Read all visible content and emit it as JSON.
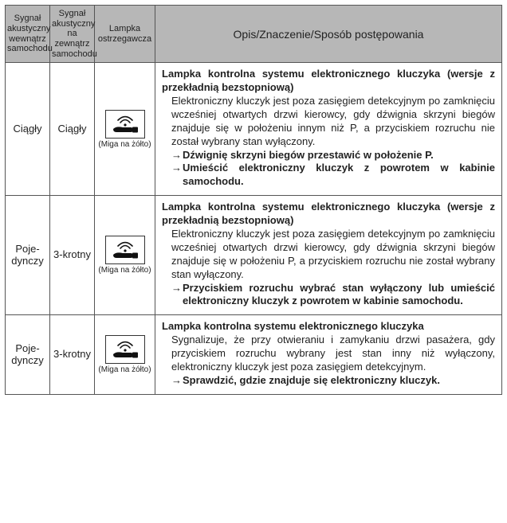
{
  "headers": {
    "col1": "Sygnał akustyczny wewnątrz samochodu",
    "col2": "Sygnał akustyczny na zewnątrz samochodu",
    "col3": "Lampka ostrze­gawcza",
    "col4": "Opis/Znaczenie/Sposób postępowania"
  },
  "lamp_caption": "(Miga na żółto)",
  "icon_colors": {
    "stroke": "#111111",
    "fill": "#111111",
    "border": "#333333",
    "bg": "#ffffff"
  },
  "rows": [
    {
      "sig_in": "Ciągły",
      "sig_out": "Ciągły",
      "title": "Lampka kontrolna systemu elektronicznego kluczyka (wersje z przekładnią bezstopniową)",
      "body": "Elektroniczny kluczyk jest poza zasięgiem detekcyjnym po zamknięciu wcześniej otwartych drzwi kierowcy, gdy dźwignia skrzyni biegów znajduje się w położeniu innym niż P, a przyciskiem rozruchu nie został wybrany stan wyłączony.",
      "actions": [
        "Dźwignię skrzyni biegów przestawić w położenie P.",
        "Umieścić elektroniczny kluczyk z powrotem w kabinie samochodu."
      ]
    },
    {
      "sig_in": "Poje­dynczy",
      "sig_out": "3-krotny",
      "title": "Lampka kontrolna systemu elektronicznego kluczyka (wersje z przekładnią bezstopniową)",
      "body": "Elektroniczny kluczyk jest poza zasięgiem detekcyjnym po zamknięciu wcześniej otwartych drzwi kierowcy, gdy dźwignia skrzyni biegów znajduje się w położeniu P, a przyciskiem rozruchu nie został wybrany stan wyłączony.",
      "actions": [
        "Przyciskiem rozruchu wybrać stan wyłączony lub umieścić elektroniczny kluczyk z powrotem w kabinie samochodu."
      ]
    },
    {
      "sig_in": "Poje­dynczy",
      "sig_out": "3-krotny",
      "title": "Lampka kontrolna systemu elektronicznego kluczyka",
      "body": "Sygnalizuje, że przy otwieraniu i zamykaniu drzwi pasażera, gdy przyciskiem rozruchu wybrany jest stan inny niż wyłączony, elektroniczny kluczyk jest poza zasięgiem detekcyjnym.",
      "actions": [
        "Sprawdzić, gdzie znajduje się elektroniczny kluczyk."
      ]
    }
  ]
}
